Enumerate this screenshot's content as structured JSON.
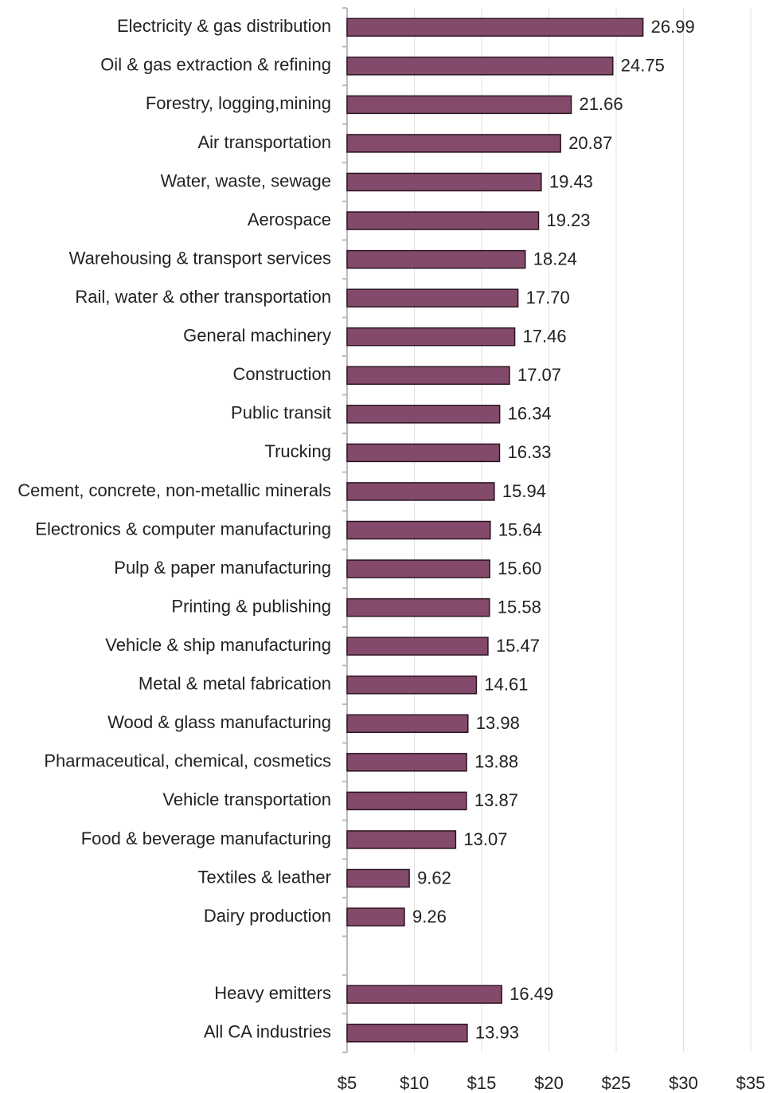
{
  "chart_data": {
    "type": "bar",
    "orientation": "horizontal",
    "categories": [
      "Electricity & gas distribution",
      "Oil & gas extraction & refining",
      "Forestry, logging,mining",
      "Air transportation",
      "Water, waste, sewage",
      "Aerospace",
      "Warehousing & transport services",
      "Rail, water & other transportation",
      "General machinery",
      "Construction",
      "Public transit",
      "Trucking",
      "Cement, concrete, non-metallic minerals",
      "Electronics & computer manufacturing",
      "Pulp & paper manufacturing",
      "Printing & publishing",
      "Vehicle & ship manufacturing",
      "Metal & metal fabrication",
      "Wood & glass manufacturing",
      "Pharmaceutical, chemical, cosmetics",
      "Vehicle transportation",
      "Food & beverage manufacturing",
      "Textiles & leather",
      "Dairy production",
      null,
      "Heavy emitters",
      "All CA industries"
    ],
    "values": [
      26.99,
      24.75,
      21.66,
      20.87,
      19.43,
      19.23,
      18.24,
      17.7,
      17.46,
      17.07,
      16.34,
      16.33,
      15.94,
      15.64,
      15.6,
      15.58,
      15.47,
      14.61,
      13.98,
      13.88,
      13.87,
      13.07,
      9.62,
      9.26,
      null,
      16.49,
      13.93
    ],
    "value_labels": [
      "26.99",
      "24.75",
      "21.66",
      "20.87",
      "19.43",
      "19.23",
      "18.24",
      "17.70",
      "17.46",
      "17.07",
      "16.34",
      "16.33",
      "15.94",
      "15.64",
      "15.60",
      "15.58",
      "15.47",
      "14.61",
      "13.98",
      "13.88",
      "13.87",
      "13.07",
      "9.62",
      "9.26",
      null,
      "16.49",
      "13.93"
    ],
    "color": "#844a6c",
    "xlim": [
      5,
      35
    ],
    "xticks": [
      {
        "value": 5,
        "label": "$5"
      },
      {
        "value": 10,
        "label": "$10"
      },
      {
        "value": 15,
        "label": "$15"
      },
      {
        "value": 20,
        "label": "$20"
      },
      {
        "value": 25,
        "label": "$25"
      },
      {
        "value": 30,
        "label": "$30"
      },
      {
        "value": 35,
        "label": "$35"
      }
    ],
    "grid": true
  }
}
